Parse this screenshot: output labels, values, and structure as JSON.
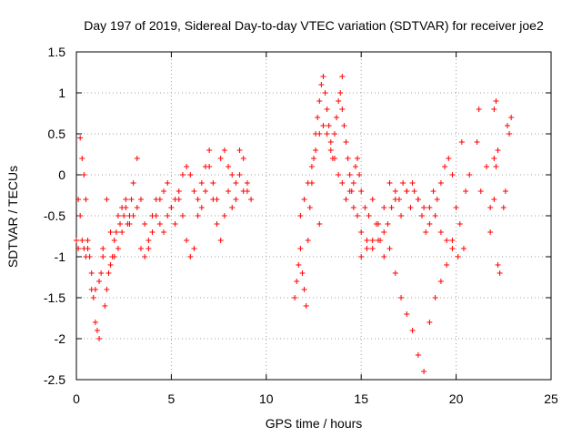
{
  "chart_data": {
    "type": "scatter",
    "title": "Day 197 of 2019, Sidereal Day-to-day VTEC variation (SDTVAR) for receiver joe2",
    "xlabel": "GPS time / hours",
    "ylabel": "SDTVAR / TECUs",
    "xlim": [
      0,
      25
    ],
    "ylim": [
      -2.5,
      1.5
    ],
    "xticks": [
      0,
      5,
      10,
      15,
      20,
      25
    ],
    "xtick_labels": [
      "0",
      "5",
      "10",
      "15",
      "20",
      "25"
    ],
    "yticks": [
      -2.5,
      -2,
      -1.5,
      -1,
      -0.5,
      0,
      0.5,
      1,
      1.5
    ],
    "ytick_labels": [
      "-2.5",
      "-2",
      "-1.5",
      "-1",
      "-0.5",
      "0",
      "0.5",
      "1",
      "1.5"
    ],
    "grid": true,
    "marker": "plus",
    "marker_color": "#ff0000",
    "series": [
      {
        "name": "SDTVAR",
        "x": [
          0.0,
          0.1,
          0.2,
          0.3,
          0.4,
          0.5,
          0.6,
          0.7,
          0.8,
          0.9,
          1.0,
          1.1,
          1.2,
          1.3,
          1.4,
          1.5,
          1.6,
          1.7,
          1.8,
          1.9,
          2.0,
          2.1,
          2.2,
          2.3,
          2.4,
          2.5,
          2.6,
          2.7,
          2.8,
          2.9,
          3.0,
          3.2,
          3.4,
          3.6,
          3.8,
          4.0,
          4.2,
          4.4,
          4.6,
          4.8,
          5.0,
          5.2,
          5.4,
          5.6,
          5.8,
          6.0,
          6.2,
          6.4,
          6.6,
          6.8,
          7.0,
          7.2,
          7.4,
          7.6,
          7.8,
          8.0,
          8.2,
          8.4,
          8.6,
          8.8,
          9.0,
          9.2,
          0.1,
          0.2,
          0.3,
          0.4,
          0.5,
          0.6,
          0.8,
          1.0,
          1.2,
          1.4,
          1.6,
          1.8,
          2.0,
          2.2,
          2.4,
          2.6,
          2.8,
          3.0,
          3.2,
          3.4,
          3.6,
          3.8,
          4.0,
          4.2,
          4.4,
          4.6,
          4.8,
          5.0,
          5.2,
          5.4,
          5.6,
          5.8,
          6.0,
          6.2,
          6.4,
          6.6,
          6.8,
          7.0,
          7.2,
          7.4,
          7.6,
          7.8,
          8.0,
          8.2,
          8.4,
          8.6,
          8.8,
          9.0,
          11.5,
          11.6,
          11.7,
          11.8,
          11.9,
          12.0,
          12.1,
          12.2,
          12.3,
          12.4,
          12.5,
          12.6,
          12.7,
          12.8,
          12.9,
          13.0,
          13.1,
          13.2,
          13.3,
          13.4,
          13.5,
          13.6,
          13.7,
          13.8,
          13.9,
          14.0,
          14.1,
          14.2,
          14.3,
          14.4,
          14.5,
          14.6,
          14.7,
          14.8,
          14.9,
          15.0,
          15.2,
          15.4,
          15.6,
          15.8,
          16.0,
          16.2,
          16.4,
          16.6,
          16.8,
          17.0,
          17.2,
          17.4,
          17.6,
          17.8,
          18.0,
          18.2,
          18.4,
          18.6,
          18.8,
          19.0,
          19.2,
          19.4,
          19.6,
          19.8,
          20.0,
          20.2,
          20.4,
          11.8,
          12.0,
          12.2,
          12.4,
          12.6,
          12.8,
          13.0,
          13.2,
          13.4,
          13.6,
          13.8,
          14.0,
          14.2,
          14.4,
          14.6,
          14.8,
          15.0,
          15.3,
          15.6,
          15.9,
          16.2,
          16.5,
          16.8,
          17.1,
          17.4,
          17.7,
          18.0,
          18.3,
          18.6,
          18.9,
          19.2,
          19.5,
          19.8,
          20.1,
          15.0,
          15.3,
          15.6,
          15.9,
          16.2,
          16.5,
          16.8,
          17.1,
          17.4,
          17.7,
          18.0,
          18.3,
          18.6,
          18.9,
          19.2,
          19.5,
          19.8,
          20.3,
          20.5,
          20.7,
          21.1,
          21.3,
          21.6,
          21.8,
          22.0,
          22.1,
          22.2,
          22.3,
          22.5,
          22.6,
          22.7,
          22.8,
          22.9,
          22.0,
          22.1,
          22.2,
          21.2,
          21.8,
          22.0,
          12.8,
          14.0
        ],
        "y": [
          -0.8,
          -0.9,
          0.45,
          0.2,
          0.0,
          -0.3,
          -0.9,
          -1.0,
          -1.4,
          -1.5,
          -1.8,
          -1.9,
          -2.0,
          -1.2,
          -0.9,
          -1.6,
          -1.4,
          -1.2,
          -1.1,
          -1.0,
          -1.0,
          -0.7,
          -0.9,
          -0.6,
          -0.7,
          -0.5,
          -0.4,
          -0.6,
          -0.5,
          -0.3,
          -0.1,
          -0.4,
          -0.9,
          -1.0,
          -0.9,
          -0.7,
          -0.5,
          -0.3,
          -0.2,
          -0.1,
          -0.4,
          -0.3,
          -0.2,
          0.0,
          0.1,
          0.0,
          -0.2,
          -0.3,
          -0.1,
          0.1,
          0.3,
          -0.1,
          -0.3,
          0.2,
          0.3,
          0.1,
          0.0,
          -0.1,
          0.3,
          0.2,
          -0.2,
          -0.3,
          -0.3,
          -0.5,
          -0.8,
          -0.9,
          -1.0,
          -0.8,
          -1.2,
          -1.4,
          -1.3,
          -1.0,
          -0.3,
          -0.7,
          -0.8,
          -0.5,
          -0.4,
          -0.3,
          -0.6,
          -0.5,
          0.2,
          -0.3,
          -0.6,
          -0.8,
          -0.5,
          -0.3,
          -0.6,
          -0.7,
          -0.5,
          -0.4,
          -0.6,
          -0.3,
          -0.5,
          -0.8,
          -1.0,
          -0.9,
          -0.5,
          -0.4,
          -0.2,
          0.1,
          -0.3,
          -0.6,
          -0.8,
          -0.5,
          -0.2,
          -0.4,
          -0.3,
          0.0,
          -0.2,
          -0.1,
          -1.5,
          -1.3,
          -1.1,
          -0.9,
          -1.2,
          -1.4,
          -1.6,
          -0.8,
          -0.4,
          -0.1,
          0.2,
          0.5,
          0.7,
          0.9,
          1.1,
          1.2,
          1.0,
          0.8,
          0.6,
          0.4,
          0.2,
          0.5,
          0.7,
          0.9,
          1.0,
          0.8,
          0.6,
          0.4,
          0.2,
          0.0,
          -0.2,
          -0.1,
          0.1,
          0.2,
          0.0,
          -0.2,
          -0.4,
          -0.5,
          -0.3,
          -0.6,
          -0.8,
          -1.0,
          -0.6,
          -0.4,
          -0.2,
          -0.3,
          -0.1,
          -0.2,
          -0.4,
          -0.2,
          -0.3,
          -0.5,
          -0.7,
          -0.4,
          -0.2,
          -0.3,
          -0.1,
          0.1,
          0.2,
          0.0,
          -0.4,
          -0.6,
          -0.9,
          -0.5,
          -0.3,
          -0.1,
          0.1,
          0.3,
          0.5,
          0.6,
          0.5,
          0.3,
          0.2,
          0.0,
          -0.1,
          -0.3,
          -0.2,
          -0.4,
          -0.5,
          -0.7,
          -0.8,
          -0.9,
          -0.6,
          -0.4,
          -0.1,
          -0.3,
          -0.5,
          -0.2,
          -0.1,
          -0.3,
          -0.4,
          -0.6,
          -0.5,
          -0.7,
          -0.8,
          -0.9,
          -1.0,
          -1.0,
          -0.9,
          -0.8,
          -0.8,
          -0.7,
          -0.9,
          -1.2,
          -1.5,
          -1.7,
          -1.9,
          -2.2,
          -2.4,
          -1.8,
          -1.5,
          -1.3,
          -1.1,
          -0.8,
          0.4,
          -0.2,
          0.0,
          0.4,
          -0.2,
          0.1,
          -0.4,
          0.8,
          0.9,
          -1.1,
          -1.2,
          -0.4,
          -0.2,
          0.6,
          0.5,
          0.7,
          0.2,
          0.1,
          0.3,
          0.8,
          -0.7,
          -0.3,
          -0.6,
          1.2
        ]
      }
    ]
  }
}
